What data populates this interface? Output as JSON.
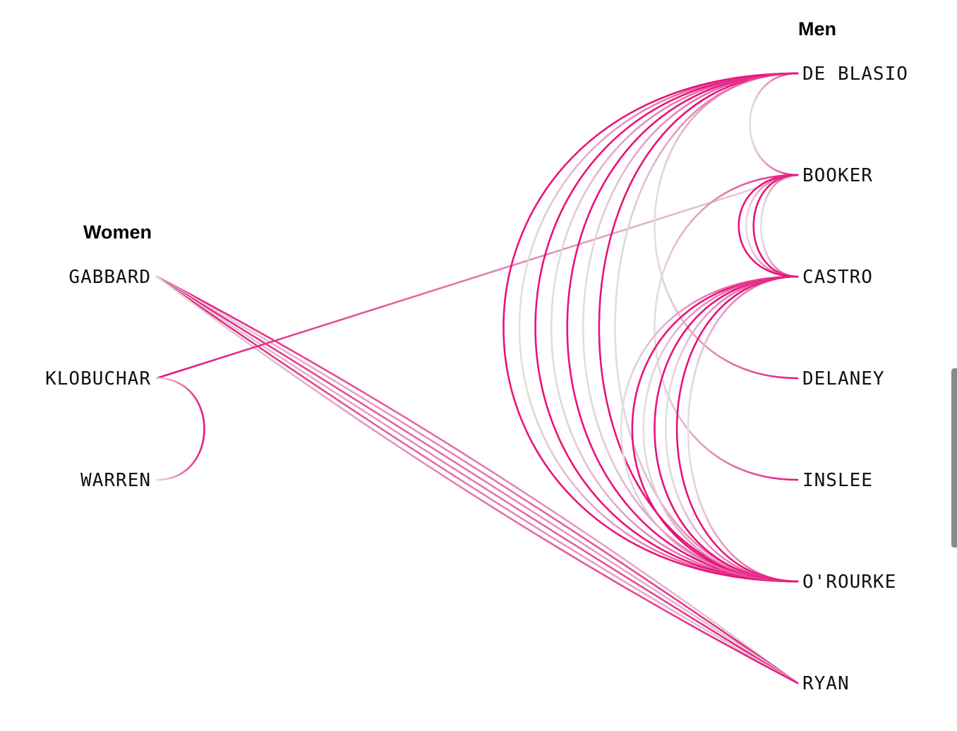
{
  "groups": {
    "women": {
      "title": "Women"
    },
    "men": {
      "title": "Men"
    }
  },
  "colors": {
    "accent": "#e8127c",
    "faded": "#dcdcdc"
  },
  "women": [
    {
      "id": "gabbard",
      "label": "GABBARD"
    },
    {
      "id": "klobuchar",
      "label": "KLOBUCHAR"
    },
    {
      "id": "warren",
      "label": "WARREN"
    }
  ],
  "men": [
    {
      "id": "deblasio",
      "label": "DE BLASIO"
    },
    {
      "id": "booker",
      "label": "BOOKER"
    },
    {
      "id": "castro",
      "label": "CASTRO"
    },
    {
      "id": "delaney",
      "label": "DELANEY"
    },
    {
      "id": "inslee",
      "label": "INSLEE"
    },
    {
      "id": "orourke",
      "label": "O'ROURKE"
    },
    {
      "id": "ryan",
      "label": "RYAN"
    }
  ],
  "links": [
    {
      "from": "gabbard",
      "to": "ryan",
      "count": 6
    },
    {
      "from": "klobuchar",
      "to": "booker",
      "count": 1
    },
    {
      "from": "klobuchar",
      "to": "delaney",
      "count": 1
    },
    {
      "from": "klobuchar",
      "to": "warren",
      "count": 1
    },
    {
      "from": "warren",
      "to": "inslee",
      "count": 1
    },
    {
      "from": "deblasio",
      "to": "orourke",
      "count": 8
    },
    {
      "from": "deblasio",
      "to": "booker",
      "count": 1
    },
    {
      "from": "deblasio",
      "to": "delaney",
      "count": 1
    },
    {
      "from": "booker",
      "to": "castro",
      "count": 4
    },
    {
      "from": "booker",
      "to": "inslee",
      "count": 1
    },
    {
      "from": "castro",
      "to": "orourke",
      "count": 7
    }
  ]
}
